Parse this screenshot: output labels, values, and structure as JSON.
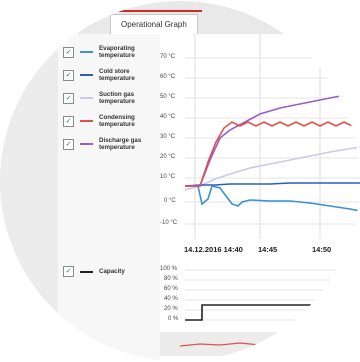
{
  "tabs": {
    "active_label": "Operational Graph"
  },
  "legend": {
    "items": [
      {
        "label": "Evaporating temperature",
        "color": "#3a8fd6",
        "checked": true
      },
      {
        "label": "Cold store temperature",
        "color": "#2e5cb8",
        "checked": true
      },
      {
        "label": "Suction gas temperature",
        "color": "#c9c9e8",
        "checked": true
      },
      {
        "label": "Condensing temperature",
        "color": "#e05050",
        "checked": true
      },
      {
        "label": "Discharge gas temperature",
        "color": "#9a5cc8",
        "checked": true
      }
    ],
    "capacity": {
      "label": "Capacity",
      "color": "#222222",
      "checked": true
    }
  },
  "chart_data": [
    {
      "type": "line",
      "ylabels": [
        "70 °C",
        "60 °C",
        "50 °C",
        "40 °C",
        "30 °C",
        "20 °C",
        "10 °C",
        "0 °C",
        "-10 °C"
      ],
      "ylim": [
        -10,
        70
      ],
      "xlabels": [
        "14.12.2016 14:40",
        "14:45",
        "14:50"
      ],
      "series": [
        {
          "name": "Evaporating temperature",
          "color": "#3a8fd6"
        },
        {
          "name": "Cold store temperature",
          "color": "#2e5cb8"
        },
        {
          "name": "Suction gas temperature",
          "color": "#c9c9e8"
        },
        {
          "name": "Condensing temperature",
          "color": "#e05050"
        },
        {
          "name": "Discharge gas temperature",
          "color": "#9a5cc8"
        }
      ]
    },
    {
      "type": "line",
      "ylabels": [
        "100 %",
        "80 %",
        "60 %",
        "40 %",
        "20 %",
        "0 %"
      ],
      "ylim": [
        0,
        100
      ],
      "series": [
        {
          "name": "Capacity",
          "color": "#222222"
        }
      ]
    }
  ]
}
